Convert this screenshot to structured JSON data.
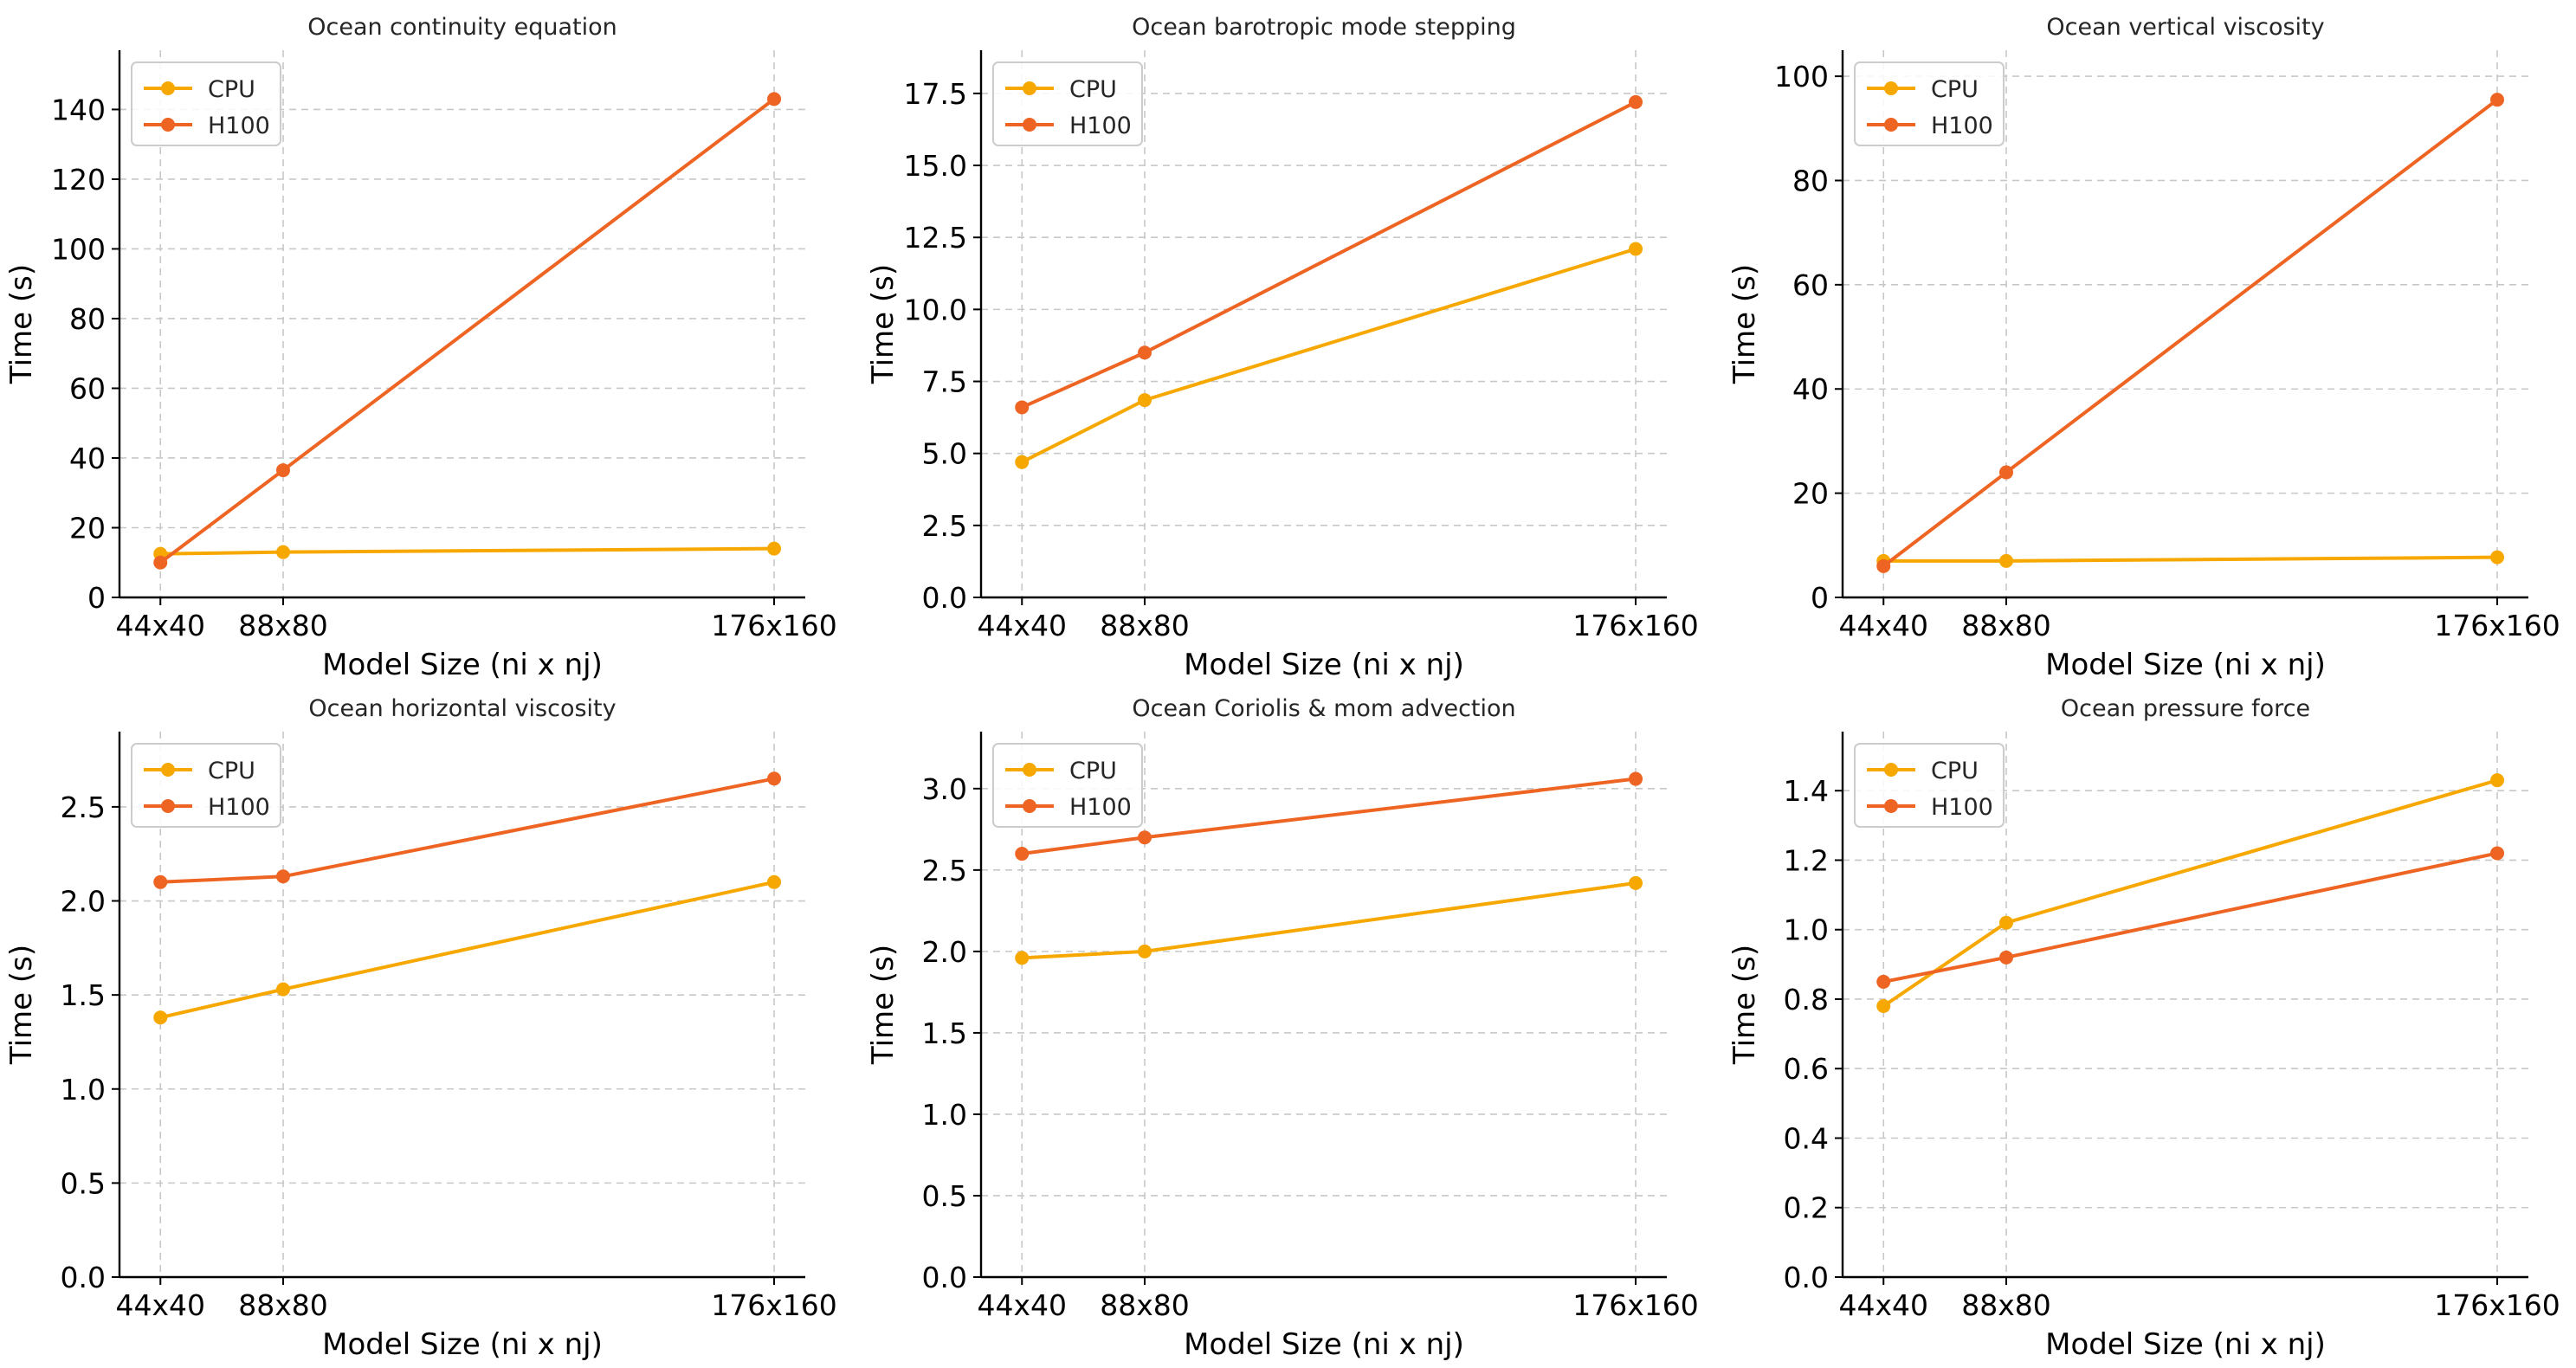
{
  "chart_data": [
    {
      "type": "line",
      "title": "Ocean continuity equation",
      "xlabel": "Model Size (ni x nj)",
      "ylabel": "Time (s)",
      "categories": [
        "44x40",
        "88x80",
        "176x160"
      ],
      "x": [
        1760,
        7040,
        28160
      ],
      "xlim": [
        0,
        29500
      ],
      "ylim": [
        0,
        157
      ],
      "yticks": [
        0,
        20,
        40,
        60,
        80,
        100,
        120,
        140
      ],
      "ytick_labels": [
        "0",
        "20",
        "40",
        "60",
        "80",
        "100",
        "120",
        "140"
      ],
      "grid": true,
      "legend": "top-left",
      "series": [
        {
          "name": "CPU",
          "color": "#F7A800",
          "values": [
            12.5,
            13.0,
            14.0
          ]
        },
        {
          "name": "H100",
          "color": "#EE6423",
          "values": [
            10.0,
            36.5,
            143.0
          ]
        }
      ]
    },
    {
      "type": "line",
      "title": "Ocean barotropic mode stepping",
      "xlabel": "Model Size (ni x nj)",
      "ylabel": "Time (s)",
      "categories": [
        "44x40",
        "88x80",
        "176x160"
      ],
      "x": [
        1760,
        7040,
        28160
      ],
      "xlim": [
        0,
        29500
      ],
      "ylim": [
        0,
        19
      ],
      "yticks": [
        0,
        2.5,
        5,
        7.5,
        10,
        12.5,
        15,
        17.5
      ],
      "ytick_labels": [
        "0.0",
        "2.5",
        "5.0",
        "7.5",
        "10.0",
        "12.5",
        "15.0",
        "17.5"
      ],
      "grid": true,
      "legend": "top-left",
      "series": [
        {
          "name": "CPU",
          "color": "#F7A800",
          "values": [
            4.7,
            6.85,
            12.1
          ]
        },
        {
          "name": "H100",
          "color": "#EE6423",
          "values": [
            6.6,
            8.5,
            17.2
          ]
        }
      ]
    },
    {
      "type": "line",
      "title": "Ocean vertical viscosity",
      "xlabel": "Model Size (ni x nj)",
      "ylabel": "Time (s)",
      "categories": [
        "44x40",
        "88x80",
        "176x160"
      ],
      "x": [
        1760,
        7040,
        28160
      ],
      "xlim": [
        0,
        29500
      ],
      "ylim": [
        0,
        105
      ],
      "yticks": [
        0,
        20,
        40,
        60,
        80,
        100
      ],
      "ytick_labels": [
        "0",
        "20",
        "40",
        "60",
        "80",
        "100"
      ],
      "grid": true,
      "legend": "top-left",
      "series": [
        {
          "name": "CPU",
          "color": "#F7A800",
          "values": [
            7.0,
            7.0,
            7.7
          ]
        },
        {
          "name": "H100",
          "color": "#EE6423",
          "values": [
            6.0,
            24.0,
            95.5
          ]
        }
      ]
    },
    {
      "type": "line",
      "title": "Ocean horizontal viscosity",
      "xlabel": "Model Size (ni x nj)",
      "ylabel": "Time (s)",
      "categories": [
        "44x40",
        "88x80",
        "176x160"
      ],
      "x": [
        1760,
        7040,
        28160
      ],
      "xlim": [
        0,
        29500
      ],
      "ylim": [
        0,
        2.9
      ],
      "yticks": [
        0,
        0.5,
        1.0,
        1.5,
        2.0,
        2.5
      ],
      "ytick_labels": [
        "0.0",
        "0.5",
        "1.0",
        "1.5",
        "2.0",
        "2.5"
      ],
      "grid": true,
      "legend": "top-left",
      "series": [
        {
          "name": "CPU",
          "color": "#F7A800",
          "values": [
            1.38,
            1.53,
            2.1
          ]
        },
        {
          "name": "H100",
          "color": "#EE6423",
          "values": [
            2.1,
            2.13,
            2.65
          ]
        }
      ]
    },
    {
      "type": "line",
      "title": "Ocean Coriolis & mom advection",
      "xlabel": "Model Size (ni x nj)",
      "ylabel": "Time (s)",
      "categories": [
        "44x40",
        "88x80",
        "176x160"
      ],
      "x": [
        1760,
        7040,
        28160
      ],
      "xlim": [
        0,
        29500
      ],
      "ylim": [
        0,
        3.35
      ],
      "yticks": [
        0,
        0.5,
        1.0,
        1.5,
        2.0,
        2.5,
        3.0
      ],
      "ytick_labels": [
        "0.0",
        "0.5",
        "1.0",
        "1.5",
        "2.0",
        "2.5",
        "3.0"
      ],
      "grid": true,
      "legend": "top-left",
      "series": [
        {
          "name": "CPU",
          "color": "#F7A800",
          "values": [
            1.96,
            2.0,
            2.42
          ]
        },
        {
          "name": "H100",
          "color": "#EE6423",
          "values": [
            2.6,
            2.7,
            3.06
          ]
        }
      ]
    },
    {
      "type": "line",
      "title": "Ocean pressure force",
      "xlabel": "Model Size (ni x nj)",
      "ylabel": "Time (s)",
      "categories": [
        "44x40",
        "88x80",
        "176x160"
      ],
      "x": [
        1760,
        7040,
        28160
      ],
      "xlim": [
        0,
        29500
      ],
      "ylim": [
        0,
        1.57
      ],
      "yticks": [
        0,
        0.2,
        0.4,
        0.6,
        0.8,
        1.0,
        1.2,
        1.4
      ],
      "ytick_labels": [
        "0.0",
        "0.2",
        "0.4",
        "0.6",
        "0.8",
        "1.0",
        "1.2",
        "1.4"
      ],
      "grid": true,
      "legend": "top-left",
      "series": [
        {
          "name": "CPU",
          "color": "#F7A800",
          "values": [
            0.78,
            1.02,
            1.43
          ]
        },
        {
          "name": "H100",
          "color": "#EE6423",
          "values": [
            0.85,
            0.92,
            1.22
          ]
        }
      ]
    }
  ]
}
